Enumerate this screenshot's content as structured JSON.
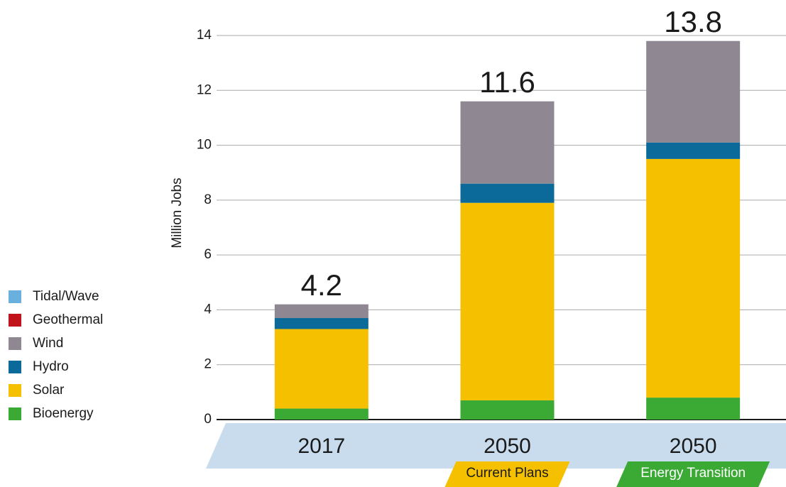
{
  "chart_data": {
    "type": "stacked_bar",
    "y_label": "Million Jobs",
    "categories": [
      "2017",
      "2050",
      "2050"
    ],
    "subcategories": [
      null,
      "Current Plans",
      "Energy Transition"
    ],
    "totals": [
      4.2,
      11.6,
      13.8
    ],
    "series": [
      {
        "name": "Bioenergy",
        "color": "#3aaa35",
        "values": [
          0.4,
          0.7,
          0.8
        ]
      },
      {
        "name": "Solar",
        "color": "#f5c000",
        "values": [
          2.9,
          7.2,
          8.7
        ]
      },
      {
        "name": "Hydro",
        "color": "#0b6a9a",
        "values": [
          0.4,
          0.7,
          0.6
        ]
      },
      {
        "name": "Wind",
        "color": "#8f8791",
        "values": [
          0.5,
          3.0,
          3.7
        ]
      },
      {
        "name": "Geothermal",
        "color": "#c0141a",
        "values": [
          0,
          0,
          0
        ]
      },
      {
        "name": "Tidal/Wave",
        "color": "#6ab0de",
        "values": [
          0,
          0,
          0
        ]
      }
    ],
    "ylim": [
      0,
      14
    ],
    "yticks": [
      0,
      2,
      4,
      6,
      8,
      10,
      12,
      14
    ],
    "grid": true
  }
}
